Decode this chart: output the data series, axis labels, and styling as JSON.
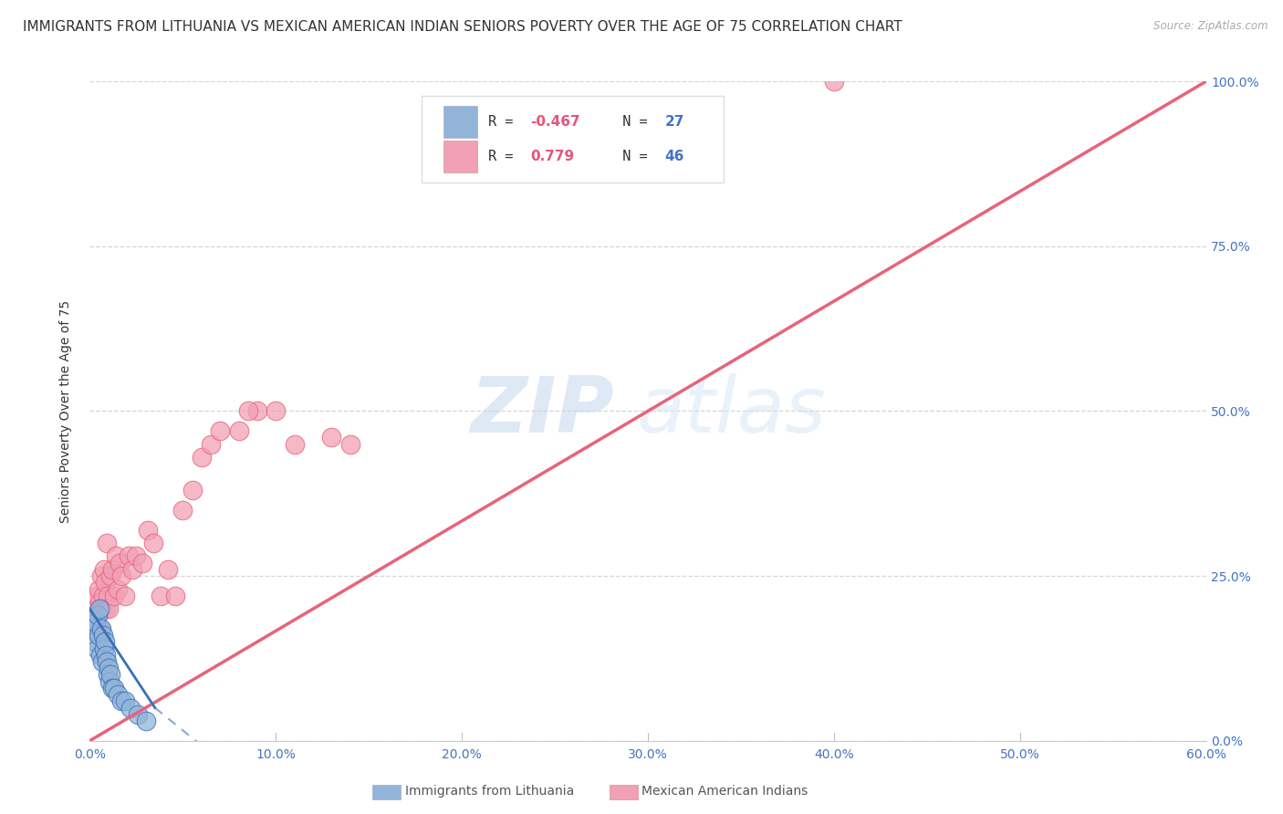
{
  "title": "IMMIGRANTS FROM LITHUANIA VS MEXICAN AMERICAN INDIAN SENIORS POVERTY OVER THE AGE OF 75 CORRELATION CHART",
  "source": "Source: ZipAtlas.com",
  "ylabel": "Seniors Poverty Over the Age of 75",
  "xlabel_vals": [
    0,
    10,
    20,
    30,
    40,
    50,
    60
  ],
  "ylabel_vals": [
    0,
    25,
    50,
    75,
    100
  ],
  "xlim": [
    0,
    60
  ],
  "ylim": [
    0,
    100
  ],
  "blue_R": -0.467,
  "blue_N": 27,
  "pink_R": 0.779,
  "pink_N": 46,
  "blue_label": "Immigrants from Lithuania",
  "pink_label": "Mexican American Indians",
  "watermark_zip": "ZIP",
  "watermark_atlas": "atlas",
  "blue_line_color": "#3a6fba",
  "pink_line_color": "#e8637a",
  "blue_dot_color": "#92b4d8",
  "pink_dot_color": "#f2a0b5",
  "grid_color": "#cccccc",
  "background_color": "#ffffff",
  "title_fontsize": 11,
  "axis_label_fontsize": 10,
  "tick_fontsize": 10,
  "legend_fontsize": 11,
  "blue_x": [
    0.15,
    0.25,
    0.3,
    0.35,
    0.4,
    0.45,
    0.5,
    0.55,
    0.6,
    0.65,
    0.7,
    0.75,
    0.8,
    0.85,
    0.9,
    0.95,
    1.0,
    1.05,
    1.1,
    1.2,
    1.3,
    1.5,
    1.7,
    1.9,
    2.2,
    2.6,
    3.0
  ],
  "blue_y": [
    17,
    15,
    18,
    14,
    19,
    16,
    20,
    13,
    17,
    12,
    16,
    14,
    15,
    13,
    12,
    10,
    11,
    9,
    10,
    8,
    8,
    7,
    6,
    6,
    5,
    4,
    3
  ],
  "pink_x": [
    0.2,
    0.3,
    0.35,
    0.4,
    0.45,
    0.5,
    0.55,
    0.6,
    0.65,
    0.7,
    0.75,
    0.8,
    0.85,
    0.9,
    0.95,
    1.0,
    1.1,
    1.2,
    1.3,
    1.4,
    1.5,
    1.6,
    1.7,
    1.9,
    2.1,
    2.3,
    2.5,
    2.8,
    3.1,
    3.4,
    3.8,
    4.2,
    4.6,
    5.0,
    5.5,
    6.0,
    6.5,
    7.0,
    8.0,
    9.0,
    10.0,
    11.0,
    13.0,
    14.0,
    40.0,
    8.5
  ],
  "pink_y": [
    18,
    20,
    22,
    19,
    23,
    21,
    17,
    25,
    20,
    22,
    26,
    24,
    20,
    30,
    22,
    20,
    25,
    26,
    22,
    28,
    23,
    27,
    25,
    22,
    28,
    26,
    28,
    27,
    32,
    30,
    22,
    26,
    22,
    35,
    38,
    43,
    45,
    47,
    47,
    50,
    50,
    45,
    46,
    45,
    100,
    50
  ]
}
